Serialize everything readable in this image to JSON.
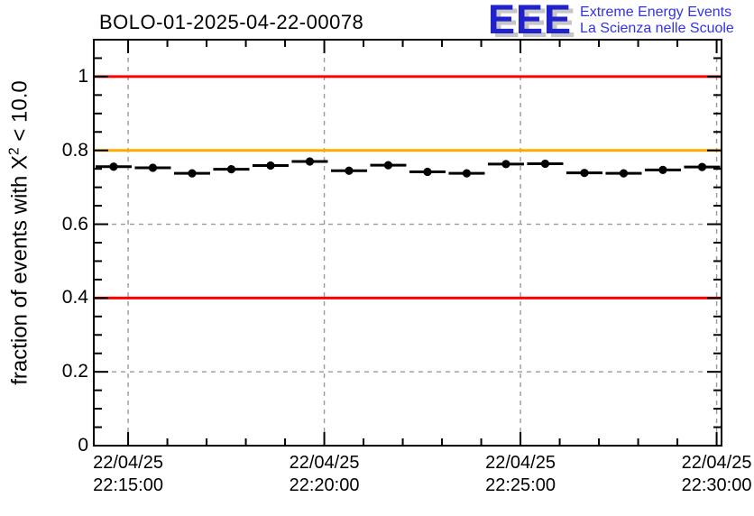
{
  "header": {
    "title": "BOLO-01-2025-04-22-00078",
    "logo": {
      "acronym": "EEE",
      "line1": "Extreme Energy Events",
      "line2": "La Scienza nelle Scuole",
      "color": "#2222cc",
      "text_color": "#3333ee",
      "shadow_color": "#c6c6c6"
    }
  },
  "axis": {
    "ylabel_prefix": "fraction of events with X",
    "ylabel_sup": "2",
    "ylabel_suffix": " < 10.0"
  },
  "chart_data": {
    "type": "scatter",
    "title": "BOLO-01-2025-04-22-00078",
    "xlabel": "",
    "ylabel": "fraction of events with X² < 10.0",
    "ylim": [
      0,
      1.1
    ],
    "xlim_minutes": [
      -0.875,
      15.125
    ],
    "grid": true,
    "legend": "none",
    "y_major_ticks": [
      {
        "value": 0,
        "label": "0"
      },
      {
        "value": 0.2,
        "label": "0.2"
      },
      {
        "value": 0.4,
        "label": "0.4"
      },
      {
        "value": 0.6,
        "label": "0.6"
      },
      {
        "value": 0.8,
        "label": "0.8"
      },
      {
        "value": 1,
        "label": "1"
      }
    ],
    "y_minor_step": 0.05,
    "x_major_ticks": [
      {
        "minute": 0,
        "date": "22/04/25",
        "time": "22:15:00"
      },
      {
        "minute": 5,
        "date": "22/04/25",
        "time": "22:20:00"
      },
      {
        "minute": 10,
        "date": "22/04/25",
        "time": "22:25:00"
      },
      {
        "minute": 15,
        "date": "22/04/25",
        "time": "22:30:00"
      }
    ],
    "x_minor_step_minutes": 1,
    "reference_lines": [
      {
        "y": 1.0,
        "color": "#ff0000"
      },
      {
        "y": 0.8,
        "color": "#ffaa00"
      },
      {
        "y": 0.4,
        "color": "#ff0000"
      }
    ],
    "colors": {
      "grid": "#999999",
      "frame": "#000000"
    },
    "series": [
      {
        "name": "fraction of events with chi2 < 10.0",
        "marker": "filled-circle",
        "color": "#000000",
        "xerr_minutes": 0.46,
        "points": [
          {
            "t": -0.37,
            "time": "22:14:38",
            "y": 0.756
          },
          {
            "t": 0.63,
            "time": "22:15:38",
            "y": 0.753
          },
          {
            "t": 1.63,
            "time": "22:16:38",
            "y": 0.738
          },
          {
            "t": 2.63,
            "time": "22:17:38",
            "y": 0.749
          },
          {
            "t": 3.63,
            "time": "22:18:38",
            "y": 0.759
          },
          {
            "t": 4.63,
            "time": "22:19:38",
            "y": 0.77
          },
          {
            "t": 5.63,
            "time": "22:20:38",
            "y": 0.745
          },
          {
            "t": 6.63,
            "time": "22:21:38",
            "y": 0.76
          },
          {
            "t": 7.63,
            "time": "22:22:38",
            "y": 0.742
          },
          {
            "t": 8.63,
            "time": "22:23:38",
            "y": 0.738
          },
          {
            "t": 9.63,
            "time": "22:24:38",
            "y": 0.763
          },
          {
            "t": 10.63,
            "time": "22:25:38",
            "y": 0.764
          },
          {
            "t": 11.63,
            "time": "22:26:38",
            "y": 0.739
          },
          {
            "t": 12.63,
            "time": "22:27:38",
            "y": 0.738
          },
          {
            "t": 13.63,
            "time": "22:28:38",
            "y": 0.747
          },
          {
            "t": 14.63,
            "time": "22:29:38",
            "y": 0.755
          }
        ]
      }
    ]
  }
}
